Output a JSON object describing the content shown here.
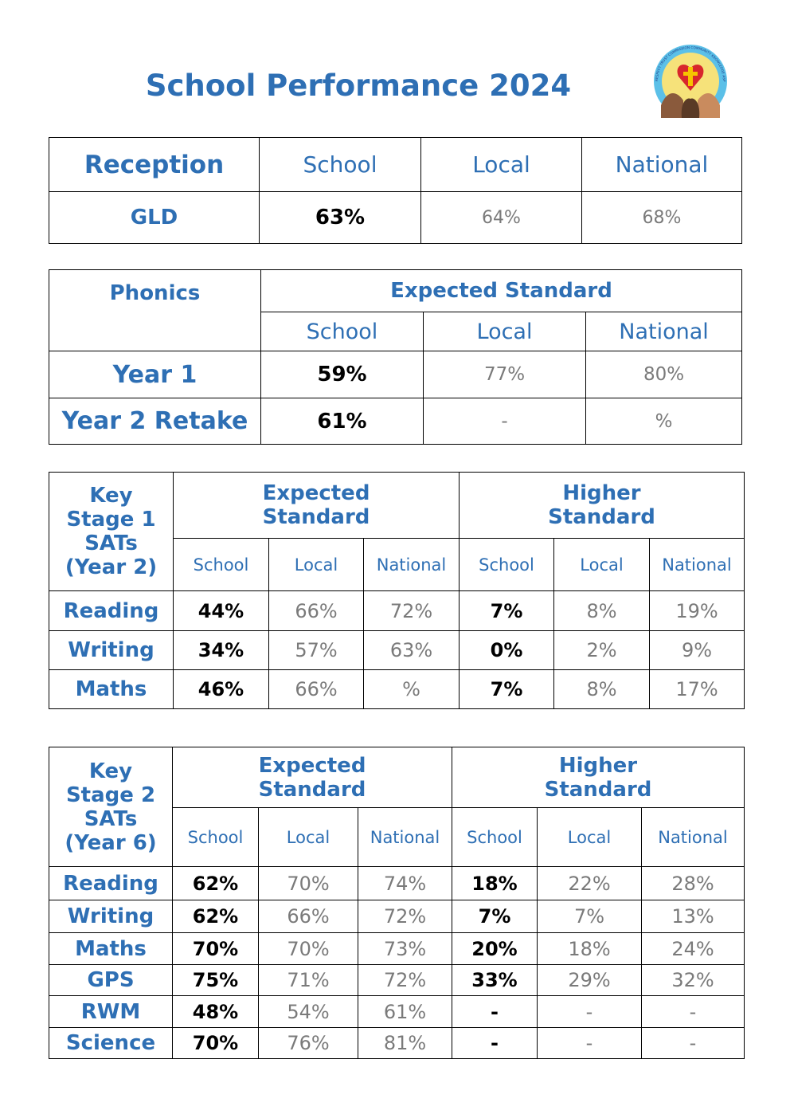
{
  "title": "School Performance 2024",
  "logo": {
    "motto": "RESPECT TRUST COMPASSION COMMUNITY KNOWLEDGE ASPIRATION"
  },
  "reception": {
    "header": [
      "Reception",
      "School",
      "Local",
      "National"
    ],
    "rows": [
      [
        "GLD",
        "63%",
        "64%",
        "68%"
      ]
    ]
  },
  "phonics": {
    "title": "Phonics",
    "group": "Expected Standard",
    "columns": [
      "School",
      "Local",
      "National"
    ],
    "rows": [
      [
        "Year 1",
        "59%",
        "77%",
        "80%"
      ],
      [
        "Year 2 Retake",
        "61%",
        "-",
        "%"
      ]
    ]
  },
  "ks1": {
    "title": "Key Stage 1 SATs (Year 2)",
    "groups": [
      "Expected Standard",
      "Higher Standard"
    ],
    "columns": [
      "School",
      "Local",
      "National",
      "School",
      "Local",
      "National"
    ],
    "rows": [
      [
        "Reading",
        "44%",
        "66%",
        "72%",
        "7%",
        "8%",
        "19%"
      ],
      [
        "Writing",
        "34%",
        "57%",
        "63%",
        "0%",
        "2%",
        "9%"
      ],
      [
        "Maths",
        "46%",
        "66%",
        "%",
        "7%",
        "8%",
        "17%"
      ]
    ]
  },
  "ks2": {
    "title": "Key Stage 2 SATs (Year 6)",
    "groups": [
      "Expected Standard",
      "Higher Standard"
    ],
    "columns": [
      "School",
      "Local",
      "National",
      "School",
      "Local",
      "National"
    ],
    "rows": [
      [
        "Reading",
        "62%",
        "70%",
        "74%",
        "18%",
        "22%",
        "28%"
      ],
      [
        "Writing",
        "62%",
        "66%",
        "72%",
        "7%",
        "7%",
        "13%"
      ],
      [
        "Maths",
        "70%",
        "70%",
        "73%",
        "20%",
        "18%",
        "24%"
      ],
      [
        "GPS",
        "75%",
        "71%",
        "72%",
        "33%",
        "29%",
        "32%"
      ],
      [
        "RWM",
        "48%",
        "54%",
        "61%",
        "-",
        "-",
        "-"
      ],
      [
        "Science",
        "70%",
        "76%",
        "81%",
        "-",
        "-",
        "-"
      ]
    ]
  }
}
